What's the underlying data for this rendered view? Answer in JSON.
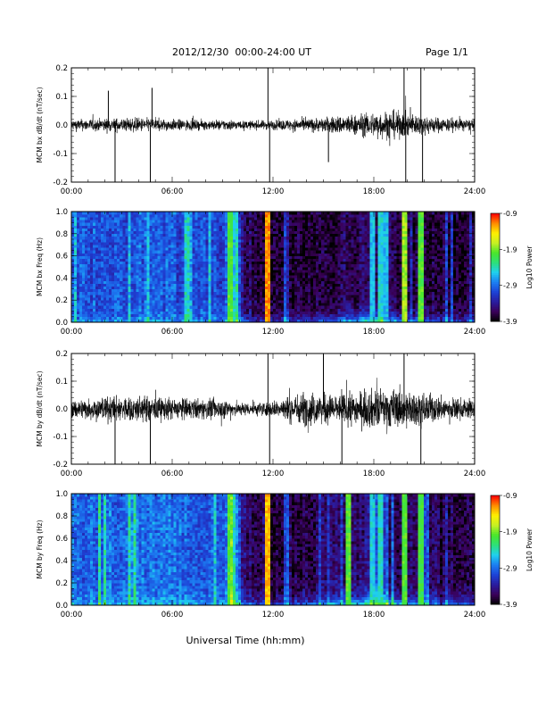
{
  "header": {
    "date_range": "2012/12/30  00:00-24:00 UT",
    "page": "Page 1/1"
  },
  "footer": {
    "xlabel": "Universal Time (hh:mm)"
  },
  "colors": {
    "trace": "#000000",
    "colormap": [
      "#000000",
      "#3a0058",
      "#2a1c9e",
      "#1d42d6",
      "#1c7ef2",
      "#1fd0f0",
      "#2de07a",
      "#49e62b",
      "#c6f024",
      "#fff000",
      "#ff8c00",
      "#ff0000"
    ]
  },
  "chart_data": [
    {
      "type": "line",
      "ylabel": "MCM bx dB/dt (nT/sec)",
      "xlim": [
        0,
        24
      ],
      "ylim": [
        -0.2,
        0.2
      ],
      "x_ticks": [
        "00:00",
        "06:00",
        "12:00",
        "18:00",
        "24:00"
      ],
      "y_ticks": [
        "-0.2",
        "-0.1",
        "0.0",
        "0.1",
        "0.2"
      ],
      "y_tick_values": [
        -0.2,
        -0.1,
        0.0,
        0.1,
        0.2
      ],
      "envelope": {
        "hours": [
          0,
          2,
          4,
          6,
          8,
          9.5,
          10,
          12,
          14,
          15,
          16,
          17,
          18,
          19,
          20,
          21,
          22,
          24
        ],
        "amp": [
          0.035,
          0.04,
          0.045,
          0.035,
          0.03,
          0.035,
          0.025,
          0.03,
          0.04,
          0.045,
          0.06,
          0.065,
          0.08,
          0.09,
          0.075,
          0.06,
          0.045,
          0.035
        ]
      },
      "spikes": [
        [
          2.2,
          0.12
        ],
        [
          2.6,
          -0.2
        ],
        [
          4.7,
          -0.2
        ],
        [
          4.8,
          0.13
        ],
        [
          11.7,
          0.2
        ],
        [
          11.8,
          -0.2
        ],
        [
          15.3,
          -0.13
        ],
        [
          19.8,
          0.2
        ],
        [
          19.9,
          -0.2
        ],
        [
          20.8,
          0.2
        ],
        [
          20.9,
          -0.2
        ]
      ]
    },
    {
      "type": "heatmap",
      "ylabel": "MCM bx Freq (Hz)",
      "colorbar_label": "Log10 Power",
      "colorbar_ticks": [
        "-0.9",
        "-1.9",
        "-2.9",
        "-3.9"
      ],
      "clim": [
        -3.9,
        -0.9
      ],
      "xlim": [
        0,
        24
      ],
      "ylim": [
        0,
        1.0
      ],
      "x_ticks": [
        "00:00",
        "06:00",
        "12:00",
        "18:00",
        "24:00"
      ],
      "y_ticks": [
        "0.0",
        "0.2",
        "0.4",
        "0.6",
        "0.8",
        "1.0"
      ],
      "y_tick_values": [
        0,
        0.2,
        0.4,
        0.6,
        0.8,
        1.0
      ],
      "base_level": {
        "hours": [
          0,
          4,
          8,
          9.3,
          9.6,
          10.2,
          12,
          16,
          18,
          20,
          24
        ],
        "value": [
          -3.05,
          -2.95,
          -3.1,
          -3.0,
          -2.3,
          -3.6,
          -3.75,
          -3.65,
          -3.55,
          -3.7,
          -3.8
        ]
      },
      "low_freq_boost": {
        "hours": [
          0,
          9,
          10,
          12,
          15,
          18,
          19,
          21,
          24
        ],
        "value": [
          0.25,
          0.3,
          0.6,
          0.55,
          0.8,
          1.4,
          1.2,
          0.8,
          0.6
        ]
      },
      "bright_lines": [
        [
          11.7,
          -1.2
        ],
        [
          19.8,
          -1.8
        ],
        [
          20.8,
          -2.0
        ],
        [
          17.9,
          -2.6
        ],
        [
          18.4,
          -2.5
        ],
        [
          18.7,
          -2.6
        ],
        [
          9.5,
          -2.0
        ]
      ]
    },
    {
      "type": "line",
      "ylabel": "MCM by dB/dt (nT/sec)",
      "xlim": [
        0,
        24
      ],
      "ylim": [
        -0.2,
        0.2
      ],
      "x_ticks": [
        "00:00",
        "06:00",
        "12:00",
        "18:00",
        "24:00"
      ],
      "y_ticks": [
        "-0.2",
        "-0.1",
        "0.0",
        "0.1",
        "0.2"
      ],
      "y_tick_values": [
        -0.2,
        -0.1,
        0.0,
        0.1,
        0.2
      ],
      "envelope": {
        "hours": [
          0,
          2,
          4,
          6,
          8,
          9.5,
          10,
          12,
          13,
          14,
          15,
          16,
          17,
          18,
          19,
          20,
          21,
          22,
          24
        ],
        "amp": [
          0.06,
          0.08,
          0.085,
          0.07,
          0.065,
          0.06,
          0.04,
          0.05,
          0.09,
          0.11,
          0.1,
          0.09,
          0.11,
          0.13,
          0.13,
          0.12,
          0.1,
          0.08,
          0.06
        ]
      },
      "spikes": [
        [
          2.6,
          -0.2
        ],
        [
          4.7,
          -0.2
        ],
        [
          11.7,
          0.2
        ],
        [
          11.8,
          -0.2
        ],
        [
          15.0,
          0.2
        ],
        [
          16.1,
          -0.2
        ],
        [
          19.8,
          0.2
        ],
        [
          20.8,
          -0.2
        ]
      ]
    },
    {
      "type": "heatmap",
      "ylabel": "MCM by Freq (Hz)",
      "colorbar_label": "Log10 Power",
      "colorbar_ticks": [
        "-0.9",
        "-1.9",
        "-2.9",
        "-3.9"
      ],
      "clim": [
        -3.9,
        -0.9
      ],
      "xlim": [
        0,
        24
      ],
      "ylim": [
        0,
        1.0
      ],
      "x_ticks": [
        "00:00",
        "06:00",
        "12:00",
        "18:00",
        "24:00"
      ],
      "y_ticks": [
        "0.0",
        "0.2",
        "0.4",
        "0.6",
        "0.8",
        "1.0"
      ],
      "y_tick_values": [
        0,
        0.2,
        0.4,
        0.6,
        0.8,
        1.0
      ],
      "base_level": {
        "hours": [
          0,
          4,
          8,
          9.3,
          9.6,
          10.2,
          12,
          16,
          18,
          20,
          24
        ],
        "value": [
          -2.95,
          -2.85,
          -3.0,
          -2.9,
          -2.3,
          -3.5,
          -3.7,
          -3.55,
          -3.45,
          -3.6,
          -3.75
        ]
      },
      "low_freq_boost": {
        "hours": [
          0,
          9,
          10,
          12,
          15,
          18,
          19,
          21,
          24
        ],
        "value": [
          0.3,
          0.35,
          0.7,
          0.65,
          0.9,
          1.5,
          1.3,
          0.9,
          0.7
        ]
      },
      "bright_lines": [
        [
          11.7,
          -1.3
        ],
        [
          16.5,
          -2.0
        ],
        [
          19.8,
          -2.0
        ],
        [
          20.8,
          -2.1
        ],
        [
          17.9,
          -2.5
        ],
        [
          18.4,
          -2.4
        ],
        [
          9.5,
          -2.0
        ]
      ]
    }
  ]
}
